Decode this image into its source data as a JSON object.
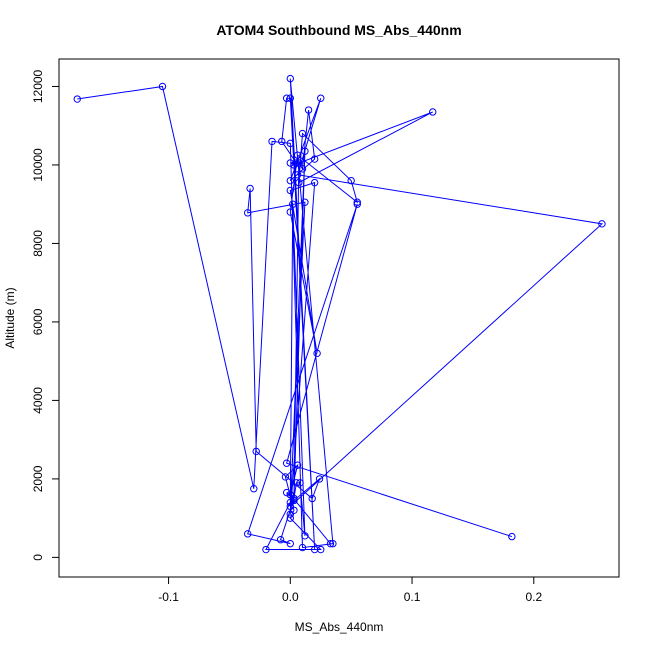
{
  "chart_data": {
    "type": "line",
    "title": "ATOM4 Southbound MS_Abs_440nm",
    "xlabel": "MS_Abs_440nm",
    "ylabel": "Altitude (m)",
    "xlim": [
      -0.19,
      0.27
    ],
    "ylim": [
      -500,
      12700
    ],
    "xticks": [
      -0.1,
      0.0,
      0.1,
      0.2
    ],
    "xtick_labels": [
      "-0.1",
      "0.0",
      "0.1",
      "0.2"
    ],
    "yticks": [
      0,
      2000,
      4000,
      6000,
      8000,
      10000,
      12000
    ],
    "ytick_labels": [
      "0",
      "2000",
      "4000",
      "6000",
      "8000",
      "10000",
      "12000"
    ],
    "grid": false,
    "series_color": "#0000ff",
    "series": [
      {
        "x": [
          -0.175,
          -0.105,
          -0.03,
          -0.015,
          0.0,
          0.01,
          0.035,
          0.0,
          0.02,
          0.0,
          -0.003,
          -0.007,
          0.005,
          0.0,
          0.003,
          0.117,
          0.007,
          0.01,
          0.05,
          0.055,
          0.006,
          0.0,
          0.022,
          0.0,
          0.02,
          0.0,
          0.012,
          0.003,
          0.007,
          0.01,
          0.015,
          0.02,
          0.0,
          0.025,
          0.006,
          0.256,
          0.0,
          0.012,
          -0.035,
          -0.033,
          -0.028,
          0.018,
          0.024,
          0.003,
          -0.003,
          0.0,
          0.033,
          0.0,
          0.006,
          -0.004,
          0.003,
          0.0,
          0.025,
          -0.02,
          0.0,
          0.002,
          0.012,
          0.008,
          0.005,
          0.003,
          -0.008,
          0.0,
          -0.035,
          0.055,
          -0.003,
          0.182
        ],
        "y": [
          11680,
          12000,
          1750,
          10600,
          10550,
          250,
          350,
          12200,
          200,
          11700,
          11700,
          10600,
          10050,
          10050,
          10000,
          11350,
          9550,
          10800,
          9600,
          9050,
          10250,
          8800,
          5200,
          9350,
          9550,
          1100,
          10350,
          1500,
          10050,
          9900,
          11400,
          10150,
          9600,
          11700,
          9750,
          8500,
          1300,
          9050,
          8780,
          9400,
          2700,
          1500,
          2000,
          1450,
          1650,
          1600,
          350,
          1600,
          2350,
          2050,
          1200,
          1000,
          200,
          200,
          1400,
          9000,
          550,
          1900,
          1900,
          1500,
          450,
          350,
          600,
          9000,
          2400,
          530
        ]
      }
    ]
  }
}
